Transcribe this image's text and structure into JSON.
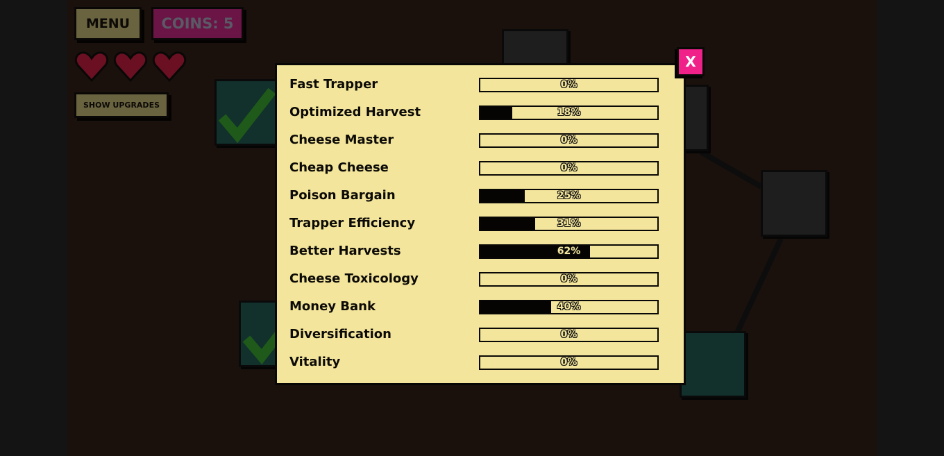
{
  "hud": {
    "menu_label": "MENU",
    "coins_label": "COINS: 5",
    "show_upgrades_label": "SHOW UPGRADES",
    "hearts": 3
  },
  "colors": {
    "panel": "#f3e59b",
    "close": "#f0228a",
    "heart": "#6b0f22"
  },
  "panel": {
    "close_label": "X",
    "upgrades": [
      {
        "name": "Fast Trapper",
        "progress": 0,
        "label": "0%"
      },
      {
        "name": "Optimized Harvest",
        "progress": 18,
        "label": "18%"
      },
      {
        "name": "Cheese Master",
        "progress": 0,
        "label": "0%"
      },
      {
        "name": "Cheap Cheese",
        "progress": 0,
        "label": "0%"
      },
      {
        "name": "Poison Bargain",
        "progress": 25,
        "label": "25%"
      },
      {
        "name": "Trapper Efficiency",
        "progress": 31,
        "label": "31%"
      },
      {
        "name": "Better Harvests",
        "progress": 62,
        "label": "62%"
      },
      {
        "name": "Cheese Toxicology",
        "progress": 0,
        "label": "0%"
      },
      {
        "name": "Money Bank",
        "progress": 40,
        "label": "40%"
      },
      {
        "name": "Diversification",
        "progress": 0,
        "label": "0%"
      },
      {
        "name": "Vitality",
        "progress": 0,
        "label": "0%"
      }
    ]
  }
}
